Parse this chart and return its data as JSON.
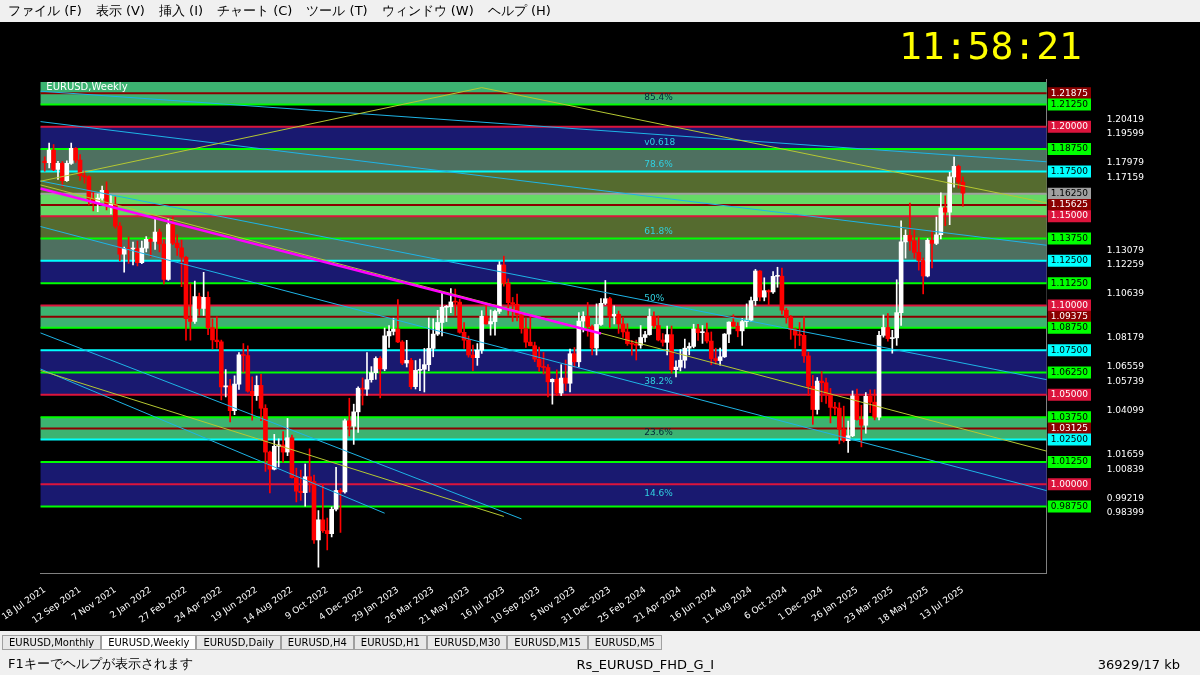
{
  "chart_data": {
    "type": "candlestick",
    "title": "EURUSD,Weekly",
    "x": [
      "2021-07-18",
      "2021-07-25",
      "2021-08-01",
      "2021-08-08",
      "2021-08-15",
      "2021-08-22",
      "2021-08-29",
      "2021-09-05",
      "2021-09-12",
      "2021-09-19",
      "2021-09-26",
      "2021-10-03",
      "2021-10-10",
      "2021-10-17",
      "2021-10-24",
      "2021-10-31",
      "2021-11-07",
      "2021-11-14",
      "2021-11-21",
      "2021-11-28",
      "2021-12-05",
      "2021-12-12",
      "2021-12-19",
      "2021-12-26",
      "2022-01-02",
      "2022-01-09",
      "2022-01-16",
      "2022-01-23",
      "2022-01-30",
      "2022-02-06",
      "2022-02-13",
      "2022-02-20",
      "2022-02-27",
      "2022-03-06",
      "2022-03-13",
      "2022-03-20",
      "2022-03-27",
      "2022-04-03",
      "2022-04-10",
      "2022-04-17",
      "2022-04-24",
      "2022-05-01",
      "2022-05-08",
      "2022-05-15",
      "2022-05-22",
      "2022-05-29",
      "2022-06-05",
      "2022-06-12",
      "2022-06-19",
      "2022-06-26",
      "2022-07-03",
      "2022-07-10",
      "2022-07-17",
      "2022-07-24",
      "2022-07-31",
      "2022-08-07",
      "2022-08-14",
      "2022-08-21",
      "2022-08-28",
      "2022-09-04",
      "2022-09-11",
      "2022-09-18",
      "2022-09-25",
      "2022-10-02",
      "2022-10-09",
      "2022-10-16",
      "2022-10-23",
      "2022-10-30",
      "2022-11-06",
      "2022-11-13",
      "2022-11-20",
      "2022-11-27",
      "2022-12-04",
      "2022-12-11",
      "2022-12-18",
      "2022-12-25",
      "2023-01-01",
      "2023-01-08",
      "2023-01-15",
      "2023-01-22",
      "2023-01-29",
      "2023-02-05",
      "2023-02-12",
      "2023-02-19",
      "2023-02-26",
      "2023-03-05",
      "2023-03-12",
      "2023-03-19",
      "2023-03-26",
      "2023-04-02",
      "2023-04-09",
      "2023-04-16",
      "2023-04-23",
      "2023-04-30",
      "2023-05-07",
      "2023-05-14",
      "2023-05-21",
      "2023-05-28",
      "2023-06-04",
      "2023-06-11",
      "2023-06-18",
      "2023-06-25",
      "2023-07-02",
      "2023-07-09",
      "2023-07-16",
      "2023-07-23",
      "2023-07-30",
      "2023-08-06",
      "2023-08-13",
      "2023-08-20",
      "2023-08-27",
      "2023-09-03",
      "2023-09-10",
      "2023-09-17",
      "2023-09-24",
      "2023-10-01",
      "2023-10-08",
      "2023-10-15",
      "2023-10-22",
      "2023-10-29",
      "2023-11-05",
      "2023-11-12",
      "2023-11-19",
      "2023-11-26",
      "2023-12-03",
      "2023-12-10",
      "2023-12-17",
      "2023-12-24",
      "2023-12-31",
      "2024-01-07",
      "2024-01-14",
      "2024-01-21",
      "2024-01-28",
      "2024-02-04",
      "2024-02-11",
      "2024-02-18",
      "2024-02-25",
      "2024-03-03",
      "2024-03-10",
      "2024-03-17",
      "2024-03-24",
      "2024-03-31",
      "2024-04-07",
      "2024-04-14",
      "2024-04-21",
      "2024-04-28",
      "2024-05-05",
      "2024-05-12",
      "2024-05-19",
      "2024-05-26",
      "2024-06-02",
      "2024-06-09",
      "2024-06-16",
      "2024-06-23",
      "2024-06-30",
      "2024-07-07",
      "2024-07-14",
      "2024-07-21",
      "2024-07-28",
      "2024-08-04",
      "2024-08-11",
      "2024-08-18",
      "2024-08-25",
      "2024-09-01",
      "2024-09-08",
      "2024-09-15",
      "2024-09-22",
      "2024-09-29",
      "2024-10-06",
      "2024-10-13",
      "2024-10-20",
      "2024-10-27",
      "2024-11-03",
      "2024-11-10",
      "2024-11-17",
      "2024-11-24",
      "2024-12-01",
      "2024-12-08",
      "2024-12-15",
      "2024-12-22",
      "2024-12-29",
      "2025-01-05",
      "2025-01-12",
      "2025-01-19",
      "2025-01-26",
      "2025-02-02",
      "2025-02-09",
      "2025-02-16",
      "2025-02-23",
      "2025-03-02",
      "2025-03-09",
      "2025-03-16",
      "2025-03-23",
      "2025-03-30",
      "2025-04-06",
      "2025-04-13",
      "2025-04-20",
      "2025-04-27",
      "2025-05-04",
      "2025-05-11",
      "2025-05-18",
      "2025-05-25",
      "2025-06-01",
      "2025-06-08",
      "2025-06-15",
      "2025-06-22",
      "2025-06-29",
      "2025-07-06",
      "2025-07-13"
    ],
    "ohlc": [
      [
        1.1808,
        1.1832,
        1.1752,
        1.1799
      ],
      [
        1.1799,
        1.1909,
        1.177,
        1.187
      ],
      [
        1.187,
        1.19,
        1.1754,
        1.1762
      ],
      [
        1.1762,
        1.1806,
        1.1705,
        1.1795
      ],
      [
        1.1795,
        1.1805,
        1.1664,
        1.1698
      ],
      [
        1.1698,
        1.181,
        1.1694,
        1.1795
      ],
      [
        1.1795,
        1.1909,
        1.179,
        1.188
      ],
      [
        1.188,
        1.1884,
        1.18,
        1.1813
      ],
      [
        1.1813,
        1.1845,
        1.17,
        1.1726
      ],
      [
        1.1726,
        1.1753,
        1.1684,
        1.172
      ],
      [
        1.172,
        1.1725,
        1.1563,
        1.1596
      ],
      [
        1.1596,
        1.164,
        1.1529,
        1.1574
      ],
      [
        1.1574,
        1.1624,
        1.1525,
        1.1601
      ],
      [
        1.1601,
        1.1668,
        1.159,
        1.1645
      ],
      [
        1.1645,
        1.1692,
        1.1535,
        1.1558
      ],
      [
        1.1558,
        1.1616,
        1.1513,
        1.1567
      ],
      [
        1.1567,
        1.1608,
        1.1432,
        1.1444
      ],
      [
        1.1444,
        1.1464,
        1.1249,
        1.1287
      ],
      [
        1.1287,
        1.1327,
        1.1186,
        1.1318
      ],
      [
        1.1318,
        1.1383,
        1.1235,
        1.1316
      ],
      [
        1.1316,
        1.1355,
        1.1227,
        1.1317
      ],
      [
        1.1317,
        1.136,
        1.1222,
        1.124
      ],
      [
        1.124,
        1.136,
        1.1234,
        1.1321
      ],
      [
        1.1321,
        1.1386,
        1.13,
        1.137
      ],
      [
        1.137,
        1.1376,
        1.1272,
        1.1359
      ],
      [
        1.1359,
        1.1483,
        1.1314,
        1.1411
      ],
      [
        1.1411,
        1.1428,
        1.13,
        1.1344
      ],
      [
        1.1344,
        1.137,
        1.1121,
        1.1146
      ],
      [
        1.1146,
        1.1483,
        1.114,
        1.1453
      ],
      [
        1.1453,
        1.1495,
        1.134,
        1.1349
      ],
      [
        1.1349,
        1.1396,
        1.128,
        1.1323
      ],
      [
        1.1323,
        1.1366,
        1.1106,
        1.127
      ],
      [
        1.127,
        1.1275,
        1.0806,
        1.0927
      ],
      [
        1.0927,
        1.1121,
        1.0806,
        1.0911
      ],
      [
        1.0911,
        1.1137,
        1.09,
        1.105
      ],
      [
        1.105,
        1.107,
        1.0945,
        1.0984
      ],
      [
        1.0984,
        1.1185,
        1.0945,
        1.1046
      ],
      [
        1.1046,
        1.1076,
        1.0837,
        1.0876
      ],
      [
        1.0876,
        1.0926,
        1.0757,
        1.0807
      ],
      [
        1.0807,
        1.0936,
        1.0761,
        1.0797
      ],
      [
        1.0797,
        1.0806,
        1.0472,
        1.0545
      ],
      [
        1.0545,
        1.0642,
        1.0489,
        1.0551
      ],
      [
        1.0551,
        1.0587,
        1.0349,
        1.0412
      ],
      [
        1.0412,
        1.0607,
        1.0389,
        1.056
      ],
      [
        1.056,
        1.0737,
        1.053,
        1.0724
      ],
      [
        1.0724,
        1.0787,
        1.0627,
        1.072
      ],
      [
        1.072,
        1.0774,
        1.0515,
        1.052
      ],
      [
        1.052,
        1.0601,
        1.0359,
        1.0496
      ],
      [
        1.0496,
        1.0606,
        1.0469,
        1.0553
      ],
      [
        1.0553,
        1.0615,
        1.0355,
        1.0425
      ],
      [
        1.0425,
        1.0445,
        1.0072,
        1.018
      ],
      [
        1.018,
        1.0186,
        0.9952,
        1.0084
      ],
      [
        1.0084,
        1.0279,
        1.008,
        1.0212
      ],
      [
        1.0212,
        1.0254,
        1.0097,
        1.022
      ],
      [
        1.022,
        1.0294,
        1.0123,
        1.018
      ],
      [
        1.018,
        1.0368,
        1.016,
        1.026
      ],
      [
        1.026,
        1.0275,
        1.0034,
        1.0037
      ],
      [
        1.0037,
        1.009,
        0.9901,
        0.9961
      ],
      [
        0.9961,
        1.0079,
        0.991,
        0.9953
      ],
      [
        0.9953,
        1.0113,
        0.9877,
        1.0042
      ],
      [
        1.0042,
        1.0198,
        0.9956,
        1.0015
      ],
      [
        1.0015,
        1.0051,
        0.9669,
        0.9688
      ],
      [
        0.9688,
        0.9853,
        0.9536,
        0.9801
      ],
      [
        0.9801,
        0.9999,
        0.973,
        0.974
      ],
      [
        0.974,
        0.981,
        0.9632,
        0.9723
      ],
      [
        0.9723,
        0.9873,
        0.9705,
        0.986
      ],
      [
        0.986,
        1.0094,
        0.9851,
        0.9965
      ],
      [
        0.9965,
        0.9976,
        0.973,
        0.9957
      ],
      [
        0.9957,
        1.0365,
        0.995,
        1.0355
      ],
      [
        1.0355,
        1.0481,
        1.027,
        1.0325
      ],
      [
        1.0325,
        1.0448,
        1.0223,
        1.0405
      ],
      [
        1.0405,
        1.0545,
        1.029,
        1.0537
      ],
      [
        1.0537,
        1.0595,
        1.0443,
        1.0532
      ],
      [
        1.0532,
        1.0737,
        1.0497,
        1.0585
      ],
      [
        1.0585,
        1.0658,
        1.0571,
        1.0624
      ],
      [
        1.0624,
        1.0713,
        1.0587,
        1.0704
      ],
      [
        1.0704,
        1.0714,
        1.0483,
        1.0645
      ],
      [
        1.0645,
        1.0874,
        1.0635,
        1.083
      ],
      [
        1.083,
        1.0887,
        1.0766,
        1.0855
      ],
      [
        1.0855,
        1.0929,
        1.0835,
        1.0868
      ],
      [
        1.0868,
        1.1033,
        1.0792,
        1.0796
      ],
      [
        1.0796,
        1.0804,
        1.0669,
        1.0678
      ],
      [
        1.0678,
        1.0805,
        1.0656,
        1.0693
      ],
      [
        1.0693,
        1.0705,
        1.0533,
        1.0546
      ],
      [
        1.0546,
        1.0692,
        1.0533,
        1.0637
      ],
      [
        1.0637,
        1.07,
        1.0524,
        1.0643
      ],
      [
        1.0643,
        1.076,
        1.0516,
        1.0669
      ],
      [
        1.0669,
        1.093,
        1.0635,
        1.076
      ],
      [
        1.076,
        1.0926,
        1.0713,
        1.084
      ],
      [
        1.084,
        1.0973,
        1.0832,
        1.0905
      ],
      [
        1.0905,
        1.1075,
        1.083,
        1.099
      ],
      [
        1.099,
        1.1,
        1.091,
        1.0993
      ],
      [
        1.0993,
        1.1095,
        1.096,
        1.102
      ],
      [
        1.102,
        1.1092,
        1.0942,
        1.1019
      ],
      [
        1.1019,
        1.1035,
        1.0845,
        1.085
      ],
      [
        1.085,
        1.0905,
        1.076,
        1.0806
      ],
      [
        1.0806,
        1.0829,
        1.0711,
        1.0723
      ],
      [
        1.0723,
        1.0779,
        1.0635,
        1.0708
      ],
      [
        1.0708,
        1.0787,
        1.0665,
        1.075
      ],
      [
        1.075,
        1.0971,
        1.0732,
        1.094
      ],
      [
        1.094,
        1.1012,
        1.0895,
        1.0897
      ],
      [
        1.0897,
        1.0975,
        1.0834,
        1.091
      ],
      [
        1.091,
        1.0975,
        1.0834,
        1.0967
      ],
      [
        1.0967,
        1.1245,
        1.0955,
        1.1227
      ],
      [
        1.1227,
        1.1276,
        1.1108,
        1.1124
      ],
      [
        1.1124,
        1.1149,
        1.0944,
        1.1016
      ],
      [
        1.1016,
        1.1045,
        1.0911,
        1.1007
      ],
      [
        1.1007,
        1.1064,
        1.0914,
        1.0948
      ],
      [
        1.0948,
        1.0961,
        1.0845,
        1.087
      ],
      [
        1.087,
        1.093,
        1.0766,
        1.0795
      ],
      [
        1.0795,
        1.0945,
        1.0774,
        1.0775
      ],
      [
        1.0775,
        1.0795,
        1.0686,
        1.07
      ],
      [
        1.07,
        1.0768,
        1.0631,
        1.0657
      ],
      [
        1.0657,
        1.0737,
        1.0617,
        1.0653
      ],
      [
        1.0653,
        1.067,
        1.0488,
        1.0573
      ],
      [
        1.0573,
        1.059,
        1.0448,
        1.0587
      ],
      [
        1.0587,
        1.064,
        1.0496,
        1.051
      ],
      [
        1.051,
        1.0669,
        1.0496,
        1.0594
      ],
      [
        1.0594,
        1.0695,
        1.0523,
        1.0565
      ],
      [
        1.0565,
        1.0756,
        1.0516,
        1.073
      ],
      [
        1.073,
        1.0765,
        1.0656,
        1.0685
      ],
      [
        1.0685,
        1.096,
        1.0656,
        1.0913
      ],
      [
        1.0913,
        1.0965,
        1.0852,
        1.0939
      ],
      [
        1.0939,
        1.1017,
        1.0828,
        1.0882
      ],
      [
        1.0882,
        1.089,
        1.0724,
        1.0762
      ],
      [
        1.0762,
        1.1009,
        1.0723,
        1.0894
      ],
      [
        1.0894,
        1.1039,
        1.0888,
        1.1012
      ],
      [
        1.1012,
        1.114,
        1.1005,
        1.1038
      ],
      [
        1.1038,
        1.1046,
        1.0877,
        1.0941
      ],
      [
        1.0941,
        1.0998,
        1.0897,
        1.0951
      ],
      [
        1.0951,
        1.0969,
        1.0844,
        1.0897
      ],
      [
        1.0897,
        1.0932,
        1.0821,
        1.0852
      ],
      [
        1.0852,
        1.0898,
        1.0777,
        1.0787
      ],
      [
        1.0787,
        1.0805,
        1.0722,
        1.0784
      ],
      [
        1.0784,
        1.0806,
        1.0695,
        1.0778
      ],
      [
        1.0778,
        1.0888,
        1.0761,
        1.0821
      ],
      [
        1.0821,
        1.0855,
        1.0796,
        1.0837
      ],
      [
        1.0837,
        1.0981,
        1.0834,
        1.0939
      ],
      [
        1.0939,
        1.0964,
        1.0874,
        1.0888
      ],
      [
        1.0888,
        1.0942,
        1.0802,
        1.0807
      ],
      [
        1.0807,
        1.0843,
        1.0773,
        1.0794
      ],
      [
        1.0794,
        1.0885,
        1.0724,
        1.0837
      ],
      [
        1.0837,
        1.0885,
        1.0622,
        1.0641
      ],
      [
        1.0641,
        1.069,
        1.0601,
        1.0655
      ],
      [
        1.0655,
        1.0753,
        1.0634,
        1.0694
      ],
      [
        1.0694,
        1.0812,
        1.065,
        1.0761
      ],
      [
        1.0761,
        1.0791,
        1.0724,
        1.0771
      ],
      [
        1.0771,
        1.0895,
        1.0763,
        1.0869
      ],
      [
        1.0869,
        1.0895,
        1.0805,
        1.0848
      ],
      [
        1.0848,
        1.0888,
        1.0788,
        1.0848
      ],
      [
        1.0848,
        1.0902,
        1.0791,
        1.0801
      ],
      [
        1.0801,
        1.0852,
        1.0668,
        1.0703
      ],
      [
        1.0703,
        1.0761,
        1.0671,
        1.0692
      ],
      [
        1.0692,
        1.0762,
        1.0666,
        1.0713
      ],
      [
        1.0713,
        1.0843,
        1.0709,
        1.084
      ],
      [
        1.084,
        1.0909,
        1.0792,
        1.0907
      ],
      [
        1.0907,
        1.0948,
        1.088,
        1.0884
      ],
      [
        1.0884,
        1.0904,
        1.0825,
        1.0858
      ],
      [
        1.0858,
        1.0927,
        1.0777,
        1.091
      ],
      [
        1.091,
        1.1009,
        1.088,
        1.0918
      ],
      [
        1.0918,
        1.1047,
        1.0911,
        1.1027
      ],
      [
        1.1027,
        1.1202,
        1.1001,
        1.1193
      ],
      [
        1.1193,
        1.1195,
        1.1026,
        1.1047
      ],
      [
        1.1047,
        1.1155,
        1.1026,
        1.1083
      ],
      [
        1.1083,
        1.1088,
        1.1002,
        1.1076
      ],
      [
        1.1076,
        1.119,
        1.1068,
        1.1163
      ],
      [
        1.1163,
        1.1214,
        1.1102,
        1.1164
      ],
      [
        1.1164,
        1.1209,
        1.0951,
        1.0974
      ],
      [
        1.0974,
        1.0985,
        1.0901,
        1.0936
      ],
      [
        1.0936,
        1.0944,
        1.0811,
        1.0865
      ],
      [
        1.0865,
        1.0873,
        1.0761,
        1.0834
      ],
      [
        1.0834,
        1.0905,
        1.0776,
        1.0833
      ],
      [
        1.0833,
        1.0937,
        1.0682,
        1.0718
      ],
      [
        1.0718,
        1.0739,
        1.0496,
        1.0548
      ],
      [
        1.0548,
        1.0609,
        1.0335,
        1.0418
      ],
      [
        1.0418,
        1.0597,
        1.0392,
        1.0577
      ],
      [
        1.0577,
        1.063,
        1.0461,
        1.0568
      ],
      [
        1.0568,
        1.0594,
        1.0452,
        1.0503
      ],
      [
        1.0503,
        1.0536,
        1.0343,
        1.043
      ],
      [
        1.043,
        1.0458,
        1.0389,
        1.0426
      ],
      [
        1.0426,
        1.0456,
        1.0226,
        1.0309
      ],
      [
        1.0309,
        1.0437,
        1.0236,
        1.0244
      ],
      [
        1.0244,
        1.0353,
        1.0178,
        1.0271
      ],
      [
        1.0271,
        1.0522,
        1.0266,
        1.0494
      ],
      [
        1.0494,
        1.0533,
        1.0358,
        1.0362
      ],
      [
        1.0362,
        1.0442,
        1.0209,
        1.033
      ],
      [
        1.033,
        1.0513,
        1.0285,
        1.0492
      ],
      [
        1.0492,
        1.0528,
        1.0401,
        1.0459
      ],
      [
        1.0459,
        1.0529,
        1.036,
        1.0375
      ],
      [
        1.0375,
        1.0855,
        1.036,
        1.0833
      ],
      [
        1.0833,
        1.0947,
        1.0823,
        1.0877
      ],
      [
        1.0877,
        1.0955,
        1.08,
        1.0815
      ],
      [
        1.0815,
        1.0861,
        1.0733,
        1.0819
      ],
      [
        1.0819,
        1.1144,
        1.0777,
        1.096
      ],
      [
        1.096,
        1.1474,
        1.0888,
        1.1356
      ],
      [
        1.1356,
        1.1423,
        1.1265,
        1.1393
      ],
      [
        1.1393,
        1.1573,
        1.1308,
        1.1362
      ],
      [
        1.1362,
        1.1425,
        1.1265,
        1.1297
      ],
      [
        1.1297,
        1.138,
        1.1198,
        1.1252
      ],
      [
        1.1252,
        1.1266,
        1.1065,
        1.1165
      ],
      [
        1.1165,
        1.1375,
        1.116,
        1.1364
      ],
      [
        1.1364,
        1.142,
        1.121,
        1.1348
      ],
      [
        1.1348,
        1.1495,
        1.134,
        1.1396
      ],
      [
        1.1396,
        1.1631,
        1.1373,
        1.1546
      ],
      [
        1.1546,
        1.1614,
        1.1446,
        1.1522
      ],
      [
        1.1522,
        1.1745,
        1.1452,
        1.172
      ],
      [
        1.172,
        1.183,
        1.1662,
        1.1778
      ],
      [
        1.1778,
        1.1785,
        1.1656,
        1.169
      ],
      [
        1.169,
        1.172,
        1.1556,
        1.1628
      ]
    ],
    "series": [
      {
        "type": "line",
        "color": "#ff00ff",
        "x": [
          "2021-07-11",
          "2023-12-17"
        ],
        "values": [
          1.1655,
          1.0843
        ]
      },
      {
        "type": "line",
        "color": "#b5c832",
        "x": [
          "2021-07-11",
          "2023-06-11",
          "2025-11-23"
        ],
        "values": [
          1.1695,
          1.2219,
          1.1574
        ]
      },
      {
        "type": "line",
        "color": "#b5c832",
        "x": [
          "2021-07-11",
          "2025-11-23"
        ],
        "values": [
          1.1675,
          1.0185
        ]
      },
      {
        "type": "line",
        "color": "#b5c832",
        "x": [
          "2021-07-11",
          "2023-07-16"
        ],
        "values": [
          1.0637,
          0.982
        ]
      },
      {
        "type": "line",
        "color": "#1eb4e6",
        "x": [
          "2021-07-11",
          "2025-11-23"
        ],
        "values": [
          1.2199,
          1.1804
        ]
      },
      {
        "type": "line",
        "color": "#1eb4e6",
        "x": [
          "2021-07-11",
          "2025-11-23"
        ],
        "values": [
          1.2029,
          1.1337
        ]
      },
      {
        "type": "line",
        "color": "#1eb4e6",
        "x": [
          "2021-07-11",
          "2025-11-23"
        ],
        "values": [
          1.1697,
          1.0585
        ]
      },
      {
        "type": "line",
        "color": "#1eb4e6",
        "x": [
          "2021-07-11",
          "2025-11-23"
        ],
        "values": [
          1.1442,
          0.9964
        ]
      },
      {
        "type": "line",
        "color": "#1eb4e6",
        "x": [
          "2021-07-11",
          "2023-08-13"
        ],
        "values": [
          1.0847,
          0.9806
        ]
      },
      {
        "type": "line",
        "color": "#1eb4e6",
        "x": [
          "2021-07-11",
          "2023-01-08"
        ],
        "values": [
          1.0645,
          0.9838
        ]
      }
    ],
    "xlim": [
      "2021-07-11",
      "2025-11-23"
    ],
    "xticks": [
      {
        "value": "2021-07-18",
        "label": "18 Jul 2021"
      },
      {
        "value": "2021-09-12",
        "label": "12 Sep 2021"
      },
      {
        "value": "2021-11-07",
        "label": "7 Nov 2021"
      },
      {
        "value": "2022-01-02",
        "label": "2 Jan 2022"
      },
      {
        "value": "2022-02-27",
        "label": "27 Feb 2022"
      },
      {
        "value": "2022-04-24",
        "label": "24 Apr 2022"
      },
      {
        "value": "2022-06-19",
        "label": "19 Jun 2022"
      },
      {
        "value": "2022-08-14",
        "label": "14 Aug 2022"
      },
      {
        "value": "2022-10-09",
        "label": "9 Oct 2022"
      },
      {
        "value": "2022-12-04",
        "label": "4 Dec 2022"
      },
      {
        "value": "2023-01-29",
        "label": "29 Jan 2023"
      },
      {
        "value": "2023-03-26",
        "label": "26 Mar 2023"
      },
      {
        "value": "2023-05-21",
        "label": "21 May 2023"
      },
      {
        "value": "2023-07-16",
        "label": "16 Jul 2023"
      },
      {
        "value": "2023-09-10",
        "label": "10 Sep 2023"
      },
      {
        "value": "2023-11-05",
        "label": "5 Nov 2023"
      },
      {
        "value": "2023-12-31",
        "label": "31 Dec 2023"
      },
      {
        "value": "2024-02-25",
        "label": "25 Feb 2024"
      },
      {
        "value": "2024-04-21",
        "label": "21 Apr 2024"
      },
      {
        "value": "2024-06-16",
        "label": "16 Jun 2024"
      },
      {
        "value": "2024-08-11",
        "label": "11 Aug 2024"
      },
      {
        "value": "2024-10-06",
        "label": "6 Oct 2024"
      },
      {
        "value": "2024-12-01",
        "label": "1 Dec 2024"
      },
      {
        "value": "2025-01-26",
        "label": "26 Jan 2025"
      },
      {
        "value": "2025-03-23",
        "label": "23 Mar 2025"
      },
      {
        "value": "2025-05-18",
        "label": "18 May 2025"
      },
      {
        "value": "2025-07-13",
        "label": "13 Jul 2025"
      }
    ],
    "ylim": [
      0.95,
      1.2265
    ],
    "yticks": [
      0.98399,
      0.99219,
      1.00839,
      1.01659,
      1.04099,
      1.05739,
      1.06559,
      1.08179,
      1.10639,
      1.12259,
      1.13079,
      1.17159,
      1.17979,
      1.19599,
      1.20419
    ],
    "bands": [
      {
        "axis": "y",
        "from": 1.2125,
        "to": 1.225,
        "color": "#3cb371",
        "label": "85.4%"
      },
      {
        "axis": "y",
        "from": 1.1875,
        "to": 1.2,
        "color": "#191970",
        "label": "v0.618"
      },
      {
        "axis": "y",
        "from": 1.175,
        "to": 1.1875,
        "color": "#4e7060",
        "label": "78.6%"
      },
      {
        "axis": "y",
        "from": 1.1625,
        "to": 1.175,
        "color": "#556b2f"
      },
      {
        "axis": "y",
        "from": 1.15,
        "to": 1.1625,
        "color": "#66d966"
      },
      {
        "axis": "y",
        "from": 1.1375,
        "to": 1.15,
        "color": "#556b2f",
        "label": "61.8%"
      },
      {
        "axis": "y",
        "from": 1.125,
        "to": 1.1375,
        "color": "#4e7060"
      },
      {
        "axis": "y",
        "from": 1.1125,
        "to": 1.125,
        "color": "#191970"
      },
      {
        "axis": "y",
        "from": 1.1,
        "to": 1.1125,
        "color": "#000000",
        "label": "50%"
      },
      {
        "axis": "y",
        "from": 1.0875,
        "to": 1.1,
        "color": "#3cb371"
      },
      {
        "axis": "y",
        "from": 1.05,
        "to": 1.075,
        "color": "#191970",
        "label": "38.2%"
      },
      {
        "axis": "y",
        "from": 1.025,
        "to": 1.0375,
        "color": "#3cb371",
        "label": "23.6%"
      },
      {
        "axis": "y",
        "from": 0.9875,
        "to": 1.0125,
        "color": "#191970",
        "label": "14.6%"
      }
    ],
    "ref_lines": [
      {
        "axis": "y",
        "value": 1.21875,
        "label": "1.21875",
        "color": "#8b0000"
      },
      {
        "axis": "y",
        "value": 1.2125,
        "label": "1.21250",
        "color": "#00ff00"
      },
      {
        "axis": "y",
        "value": 1.2,
        "label": "1.20000",
        "color": "#dc143c"
      },
      {
        "axis": "y",
        "value": 1.1875,
        "label": "1.18750",
        "color": "#00ff00"
      },
      {
        "axis": "y",
        "value": 1.175,
        "label": "1.17500",
        "color": "#00ffff"
      },
      {
        "axis": "y",
        "value": 1.1625,
        "label": "1.16250",
        "color": "#a0a0a0"
      },
      {
        "axis": "y",
        "value": 1.15625,
        "label": "1.15625",
        "color": "#8b0000"
      },
      {
        "axis": "y",
        "value": 1.15,
        "label": "1.15000",
        "color": "#dc143c"
      },
      {
        "axis": "y",
        "value": 1.1375,
        "label": "1.13750",
        "color": "#00ff00"
      },
      {
        "axis": "y",
        "value": 1.125,
        "label": "1.12500",
        "color": "#00ffff"
      },
      {
        "axis": "y",
        "value": 1.1125,
        "label": "1.11250",
        "color": "#00ff00"
      },
      {
        "axis": "y",
        "value": 1.1,
        "label": "1.10000",
        "color": "#dc143c"
      },
      {
        "axis": "y",
        "value": 1.09375,
        "label": "1.09375",
        "color": "#8b0000"
      },
      {
        "axis": "y",
        "value": 1.0875,
        "label": "1.08750",
        "color": "#00ff00"
      },
      {
        "axis": "y",
        "value": 1.075,
        "label": "1.07500",
        "color": "#00ffff"
      },
      {
        "axis": "y",
        "value": 1.0625,
        "label": "1.06250",
        "color": "#00ff00"
      },
      {
        "axis": "y",
        "value": 1.05,
        "label": "1.05000",
        "color": "#dc143c"
      },
      {
        "axis": "y",
        "value": 1.0375,
        "label": "1.03750",
        "color": "#00ff00"
      },
      {
        "axis": "y",
        "value": 1.03125,
        "label": "1.03125",
        "color": "#8b0000"
      },
      {
        "axis": "y",
        "value": 1.025,
        "label": "1.02500",
        "color": "#00ffff"
      },
      {
        "axis": "y",
        "value": 1.0125,
        "label": "1.01250",
        "color": "#00ff00"
      },
      {
        "axis": "y",
        "value": 1.0,
        "label": "1.00000",
        "color": "#dc143c"
      },
      {
        "axis": "y",
        "value": 0.9875,
        "label": "0.98750",
        "color": "#00ff00"
      }
    ],
    "annotations": [
      "11:58:21",
      "ファイル (F)",
      "表示 (V)",
      "挿入 (I)",
      "チャート (C)",
      "ツール (T)",
      "ウィンドウ (W)",
      "ヘルプ (H)",
      "EURUSD,Monthly",
      "EURUSD,Weekly",
      "EURUSD,Daily",
      "EURUSD,H4",
      "EURUSD,H1",
      "EURUSD,M30",
      "EURUSD,M15",
      "EURUSD,M5",
      "F1キーでヘルプが表示されます",
      "Rs_EURUSD_FHD_G_I",
      "36929/17 kb"
    ]
  }
}
